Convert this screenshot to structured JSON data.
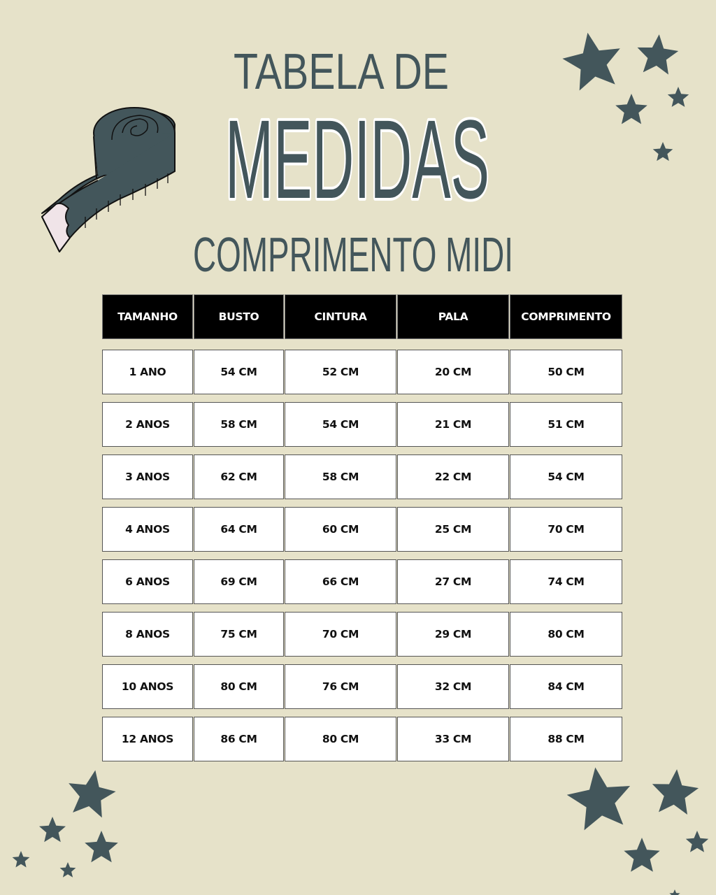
{
  "title": {
    "line1": "TABELA DE",
    "line2": "MEDIDAS",
    "subtitle": "COMPRIMENTO MIDI"
  },
  "colors": {
    "background": "#e6e2c9",
    "accent": "#43565b",
    "header_bg": "#000000",
    "cell_bg": "#ffffff"
  },
  "icons": [
    "tape-measure-icon",
    "star-icon"
  ],
  "table": {
    "headers": [
      "TAMANHO",
      "BUSTO",
      "CINTURA",
      "PALA",
      "COMPRIMENTO"
    ],
    "rows": [
      [
        "1 ANO",
        "54 CM",
        "52 CM",
        "20 CM",
        "50 CM"
      ],
      [
        "2 ANOS",
        "58 CM",
        "54 CM",
        "21 CM",
        "51 CM"
      ],
      [
        "3 ANOS",
        "62 CM",
        "58 CM",
        "22 CM",
        "54 CM"
      ],
      [
        "4 ANOS",
        "64 CM",
        "60 CM",
        "25 CM",
        "70 CM"
      ],
      [
        "6 ANOS",
        "69 CM",
        "66 CM",
        "27 CM",
        "74 CM"
      ],
      [
        "8 ANOS",
        "75 CM",
        "70 CM",
        "29 CM",
        "80 CM"
      ],
      [
        "10 ANOS",
        "80 CM",
        "76 CM",
        "32 CM",
        "84 CM"
      ],
      [
        "12 ANOS",
        "86 CM",
        "80 CM",
        "33 CM",
        "88 CM"
      ]
    ]
  }
}
